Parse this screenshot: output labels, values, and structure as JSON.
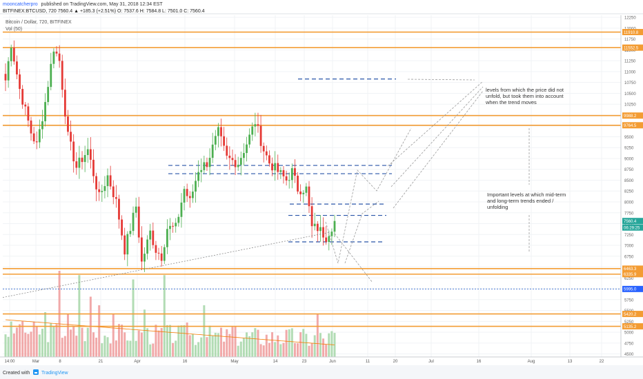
{
  "header": {
    "author": "mooncatcherpro",
    "published": "published on TradingView.com, May 31, 2018 12:34 EST",
    "ticker_line": "BITFINEX:BTCUSD, 720  7560.4  ▲ +185.3 (+2.51%)  O: 7537.6  H: 7584.8  L: 7501.0  C: 7560.4",
    "symbol_name": "Bitcoin / Dollar, 720, BITFINEX",
    "indicator": "Vol (50)"
  },
  "footer": {
    "created_with": "Created with",
    "brand": "TradingView"
  },
  "annotations": {
    "note_top": [
      "levels from which the price did not",
      "unfold, but took them into account",
      "when the trend moves"
    ],
    "note_mid": [
      "Important levels at which mid-term",
      "and long-term trends ended /",
      "unfolding"
    ]
  },
  "colors": {
    "up": "#4caf50",
    "down": "#e53935",
    "level": "#f39c33",
    "dashed": "#2855a8",
    "blue_dotted": "#4a7bd4",
    "vol_up": "#a5d6a7",
    "vol_down": "#ef9a9a",
    "vol_ma": "#f57c00"
  },
  "chart_data": {
    "type": "candlestick",
    "x_tick_labels": [
      "14:00",
      "Mar",
      "8",
      "21",
      "Apr",
      "16",
      "May",
      "14",
      "23",
      "Jun",
      "11",
      "20",
      "Jul",
      "16",
      "Aug",
      "13",
      "22"
    ],
    "y_tick_labels": [
      12250,
      12000,
      11750,
      11500,
      11250,
      11000,
      10750,
      10500,
      10250,
      10000,
      9750,
      9500,
      9250,
      9000,
      8750,
      8500,
      8250,
      8000,
      7750,
      7500,
      7250,
      7000,
      6750,
      6500,
      6250,
      6000,
      5750,
      5500,
      5250,
      5000,
      4750,
      4500
    ],
    "ylim": [
      4430,
      12300
    ],
    "price_levels_solid": [
      11910.8,
      11552.5,
      9988.2,
      9764.5,
      6463.3,
      6335.9,
      5420.2,
      5135.2
    ],
    "price_level_labels": [
      "11910.8",
      "11552.5",
      "9988.2",
      "9764.5",
      "6463.3",
      "6335.9",
      "5420.2",
      "5135.2"
    ],
    "blue_level": 5995.0,
    "blue_level_label": "5995.0",
    "last_price": 7560.4,
    "last_price_label": "7560.4",
    "countdown_label": "06:29:25",
    "dashed_levels": [
      10830,
      8840,
      8650,
      7950,
      7690,
      7080
    ],
    "bars": {
      "count": 117,
      "anchors": [
        [
          0,
          10800
        ],
        [
          2,
          11650
        ],
        [
          5,
          10600
        ],
        [
          9,
          9600
        ],
        [
          11,
          9300
        ],
        [
          14,
          10300
        ],
        [
          17,
          11550
        ],
        [
          19,
          11250
        ],
        [
          22,
          9500
        ],
        [
          25,
          8800
        ],
        [
          29,
          9200
        ],
        [
          33,
          8100
        ],
        [
          36,
          8600
        ],
        [
          39,
          8000
        ],
        [
          42,
          6900
        ],
        [
          46,
          7900
        ],
        [
          48,
          6600
        ],
        [
          51,
          7300
        ],
        [
          53,
          6900
        ],
        [
          55,
          6750
        ],
        [
          57,
          7400
        ],
        [
          60,
          7400
        ],
        [
          63,
          8300
        ],
        [
          65,
          8000
        ],
        [
          68,
          8750
        ],
        [
          71,
          8900
        ],
        [
          75,
          9600
        ],
        [
          78,
          9000
        ],
        [
          82,
          8900
        ],
        [
          86,
          9500
        ],
        [
          88,
          9850
        ],
        [
          91,
          9200
        ],
        [
          93,
          8900
        ],
        [
          96,
          8700
        ],
        [
          99,
          8500
        ],
        [
          101,
          8700
        ],
        [
          103,
          8300
        ],
        [
          106,
          8300
        ],
        [
          108,
          7400
        ],
        [
          110,
          7400
        ],
        [
          113,
          7200
        ],
        [
          116,
          7560
        ]
      ]
    },
    "volume": {
      "spikes": [
        [
          5,
          0.38
        ],
        [
          14,
          0.52
        ],
        [
          19,
          1.0
        ],
        [
          22,
          0.5
        ],
        [
          26,
          0.95
        ],
        [
          30,
          0.7
        ],
        [
          33,
          0.6
        ],
        [
          38,
          0.5
        ],
        [
          45,
          0.9
        ],
        [
          49,
          0.55
        ],
        [
          56,
          0.95
        ],
        [
          64,
          0.4
        ],
        [
          70,
          0.6
        ],
        [
          80,
          0.35
        ],
        [
          96,
          0.25
        ],
        [
          110,
          0.5
        ],
        [
          115,
          0.3
        ]
      ]
    }
  }
}
